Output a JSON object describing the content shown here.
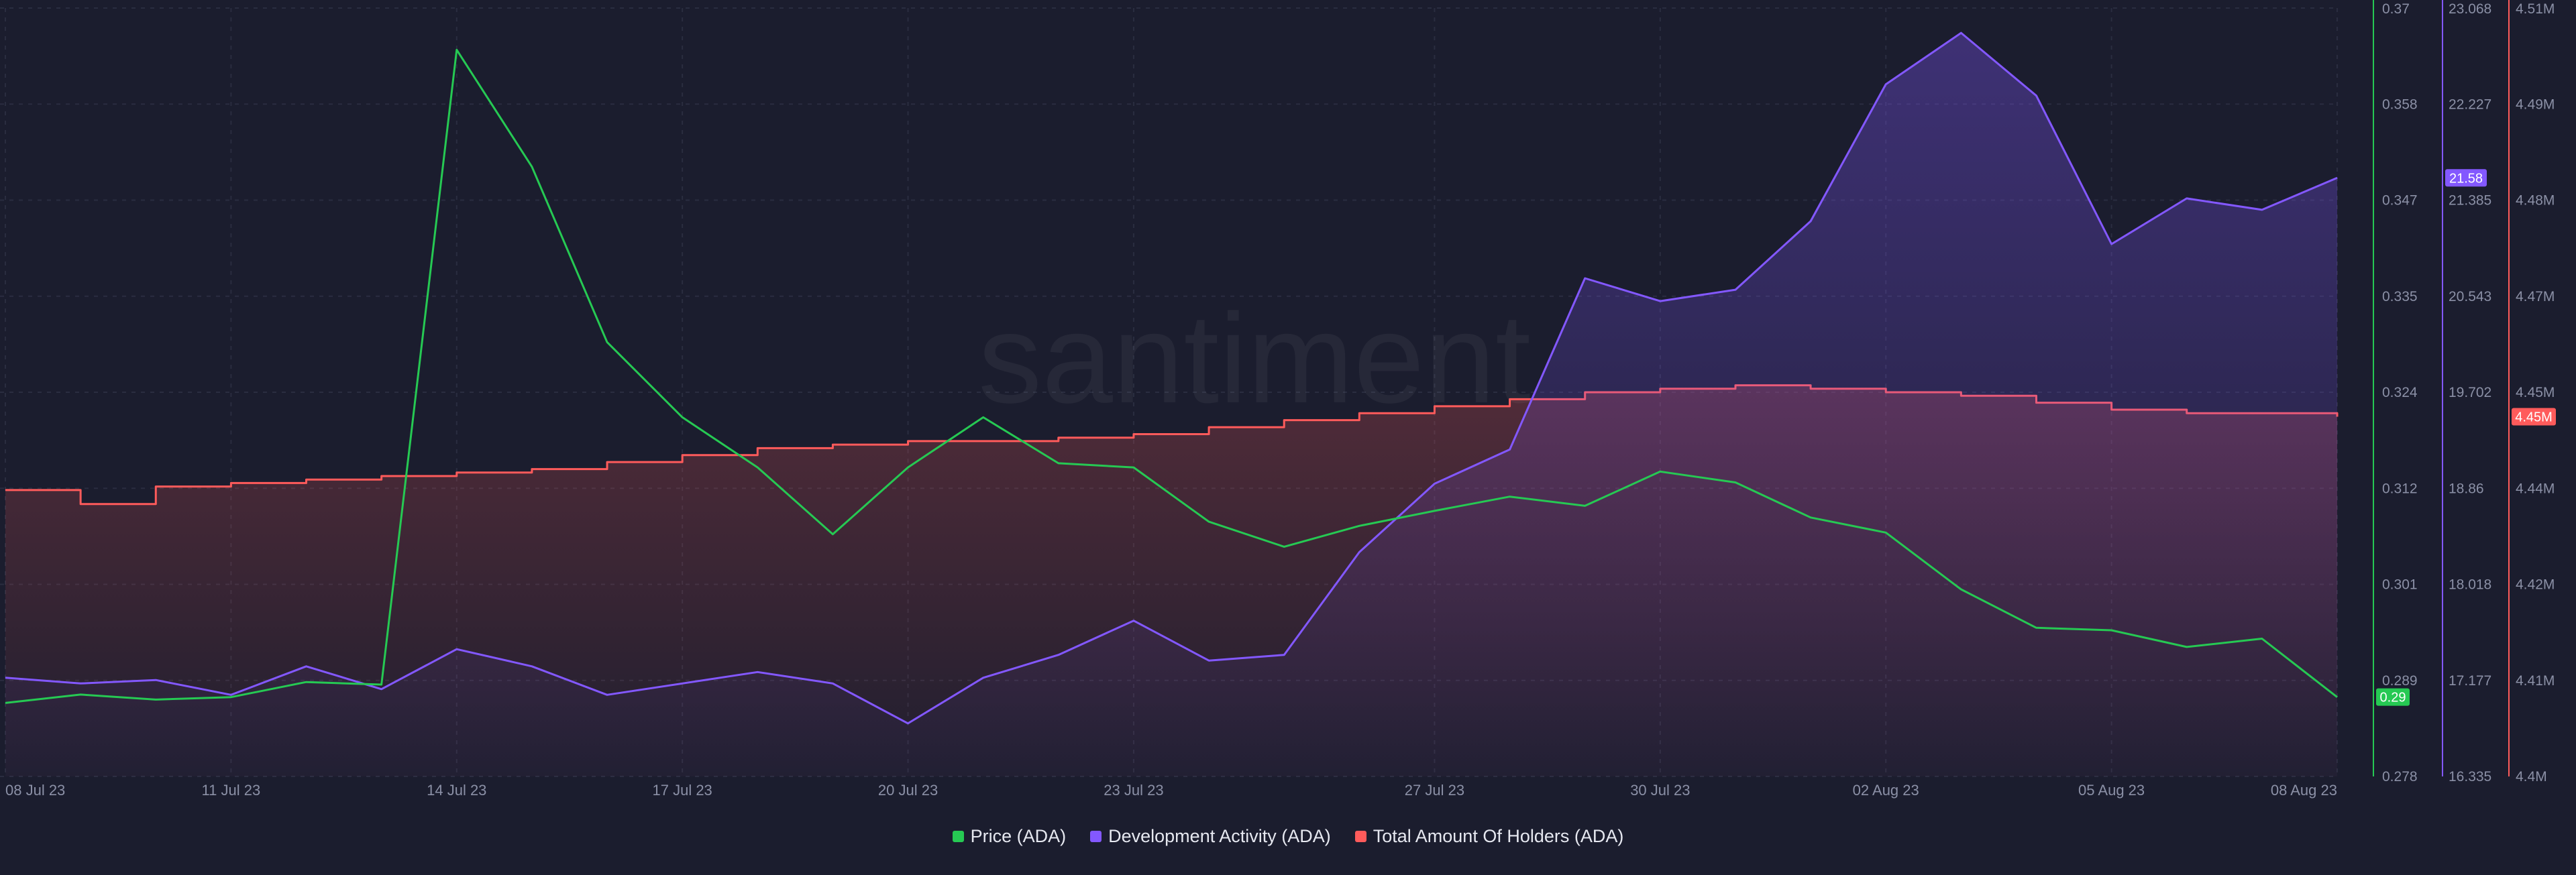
{
  "watermark": "santiment",
  "legend": {
    "price": "Price (ADA)",
    "dev": "Development Activity (ADA)",
    "holders": "Total Amount Of Holders (ADA)"
  },
  "colors": {
    "background": "#1b1d2e",
    "price": "#26c953",
    "dev": "#8358ff",
    "holders": "#ff5b5b",
    "axis_text": "#8b90a6",
    "grid": "#2a2d40"
  },
  "chart_data": {
    "type": "line",
    "x_tick_labels": [
      "08 Jul 23",
      "11 Jul 23",
      "14 Jul 23",
      "17 Jul 23",
      "20 Jul 23",
      "23 Jul 23",
      "27 Jul 23",
      "30 Jul 23",
      "02 Aug 23",
      "05 Aug 23",
      "08 Aug 23"
    ],
    "x": [
      "2023-07-08",
      "2023-07-09",
      "2023-07-10",
      "2023-07-11",
      "2023-07-12",
      "2023-07-13",
      "2023-07-14",
      "2023-07-15",
      "2023-07-16",
      "2023-07-17",
      "2023-07-18",
      "2023-07-19",
      "2023-07-20",
      "2023-07-21",
      "2023-07-22",
      "2023-07-23",
      "2023-07-24",
      "2023-07-25",
      "2023-07-26",
      "2023-07-27",
      "2023-07-28",
      "2023-07-29",
      "2023-07-30",
      "2023-07-31",
      "2023-08-01",
      "2023-08-02",
      "2023-08-03",
      "2023-08-04",
      "2023-08-05",
      "2023-08-06",
      "2023-08-07",
      "2023-08-08"
    ],
    "series": [
      {
        "name": "Price (ADA)",
        "axis": "price",
        "color": "#26c953",
        "last_value_label": "0.29",
        "values": [
          0.2868,
          0.2878,
          0.2872,
          0.2875,
          0.2893,
          0.289,
          0.365,
          0.351,
          0.33,
          0.321,
          0.315,
          0.307,
          0.315,
          0.321,
          0.3155,
          0.315,
          0.3085,
          0.3055,
          0.308,
          0.3098,
          0.3115,
          0.3104,
          0.3145,
          0.3132,
          0.309,
          0.3072,
          0.3004,
          0.2958,
          0.2955,
          0.2935,
          0.2945,
          0.2875
        ]
      },
      {
        "name": "Development Activity (ADA)",
        "axis": "dev",
        "color": "#8358ff",
        "last_value_label": "21.58",
        "values": [
          17.2,
          17.15,
          17.18,
          17.05,
          17.3,
          17.1,
          17.45,
          17.3,
          17.05,
          17.15,
          17.25,
          17.15,
          16.8,
          17.2,
          17.4,
          17.7,
          17.35,
          17.4,
          18.3,
          18.9,
          19.2,
          20.7,
          20.5,
          20.6,
          21.2,
          22.4,
          22.85,
          22.3,
          21.0,
          21.4,
          21.3,
          21.58
        ]
      },
      {
        "name": "Total Amount Of Holders (ADA)",
        "axis": "holders",
        "color": "#ff5b5b",
        "last_value_label": "4.45M",
        "values": [
          4.441,
          4.439,
          4.4415,
          4.442,
          4.4425,
          4.443,
          4.4435,
          4.444,
          4.445,
          4.446,
          4.447,
          4.4475,
          4.448,
          4.448,
          4.4485,
          4.449,
          4.45,
          4.451,
          4.452,
          4.453,
          4.454,
          4.455,
          4.4555,
          4.456,
          4.4555,
          4.455,
          4.4545,
          4.4535,
          4.4525,
          4.452,
          4.452,
          4.4515
        ]
      }
    ],
    "axes": {
      "price": {
        "ylim": [
          0.278,
          0.37
        ],
        "tick_labels": [
          "0.37",
          "0.358",
          "0.347",
          "0.335",
          "0.324",
          "0.312",
          "0.301",
          "0.289",
          "0.278"
        ]
      },
      "dev": {
        "ylim": [
          16.335,
          23.068
        ],
        "tick_labels": [
          "23.068",
          "22.227",
          "21.385",
          "20.543",
          "19.702",
          "18.86",
          "18.018",
          "17.177",
          "16.335"
        ]
      },
      "holders": {
        "ylim": [
          4.4,
          4.51
        ],
        "tick_labels": [
          "4.51M",
          "4.49M",
          "4.48M",
          "4.47M",
          "4.45M",
          "4.44M",
          "4.42M",
          "4.41M",
          "4.4M"
        ]
      }
    },
    "grid": true,
    "legend_position": "bottom-center"
  }
}
